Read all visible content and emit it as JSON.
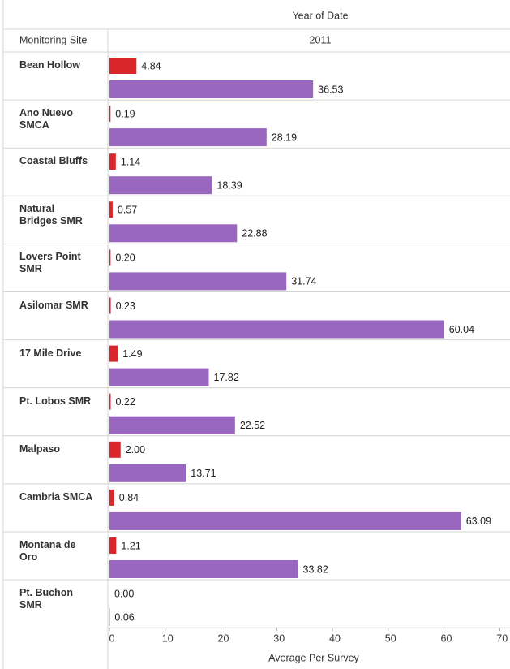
{
  "chart_data": {
    "type": "bar",
    "orientation": "horizontal",
    "column_title": "Year of Date",
    "row_title": "Monitoring Site",
    "column": "2011",
    "xlabel": "Average Per Survey",
    "categories": [
      "Bean Hollow",
      "Ano Nuevo SMCA",
      "Coastal Bluffs",
      "Natural Bridges SMR",
      "Lovers Point SMR",
      "Asilomar SMR",
      "17 Mile Drive",
      "Pt. Lobos SMR",
      "Malpaso",
      "Cambria SMCA",
      "Montana de Oro",
      "Pt. Buchon SMR"
    ],
    "series": [
      {
        "color": "#d9262b",
        "values": [
          4.84,
          0.19,
          1.14,
          0.57,
          0.2,
          0.23,
          1.49,
          0.22,
          2,
          0.84,
          1.21,
          0
        ],
        "value_labels": [
          "4.84",
          "0.19",
          "1.14",
          "0.57",
          "0.20",
          "0.23",
          "1.49",
          "0.22",
          "2.00",
          "0.84",
          "1.21",
          "0.00"
        ]
      },
      {
        "color": "#9966c0",
        "values": [
          36.53,
          28.19,
          18.39,
          22.88,
          31.74,
          60.04,
          17.82,
          22.52,
          13.71,
          63.09,
          33.82,
          0.06
        ],
        "value_labels": [
          "36.53",
          "28.19",
          "18.39",
          "22.88",
          "31.74",
          "60.04",
          "17.82",
          "22.52",
          "13.71",
          "63.09",
          "33.82",
          "0.06"
        ]
      }
    ],
    "xlim": [
      0,
      72
    ],
    "xticks": [
      0,
      10,
      20,
      30,
      40,
      50,
      60,
      70
    ]
  }
}
